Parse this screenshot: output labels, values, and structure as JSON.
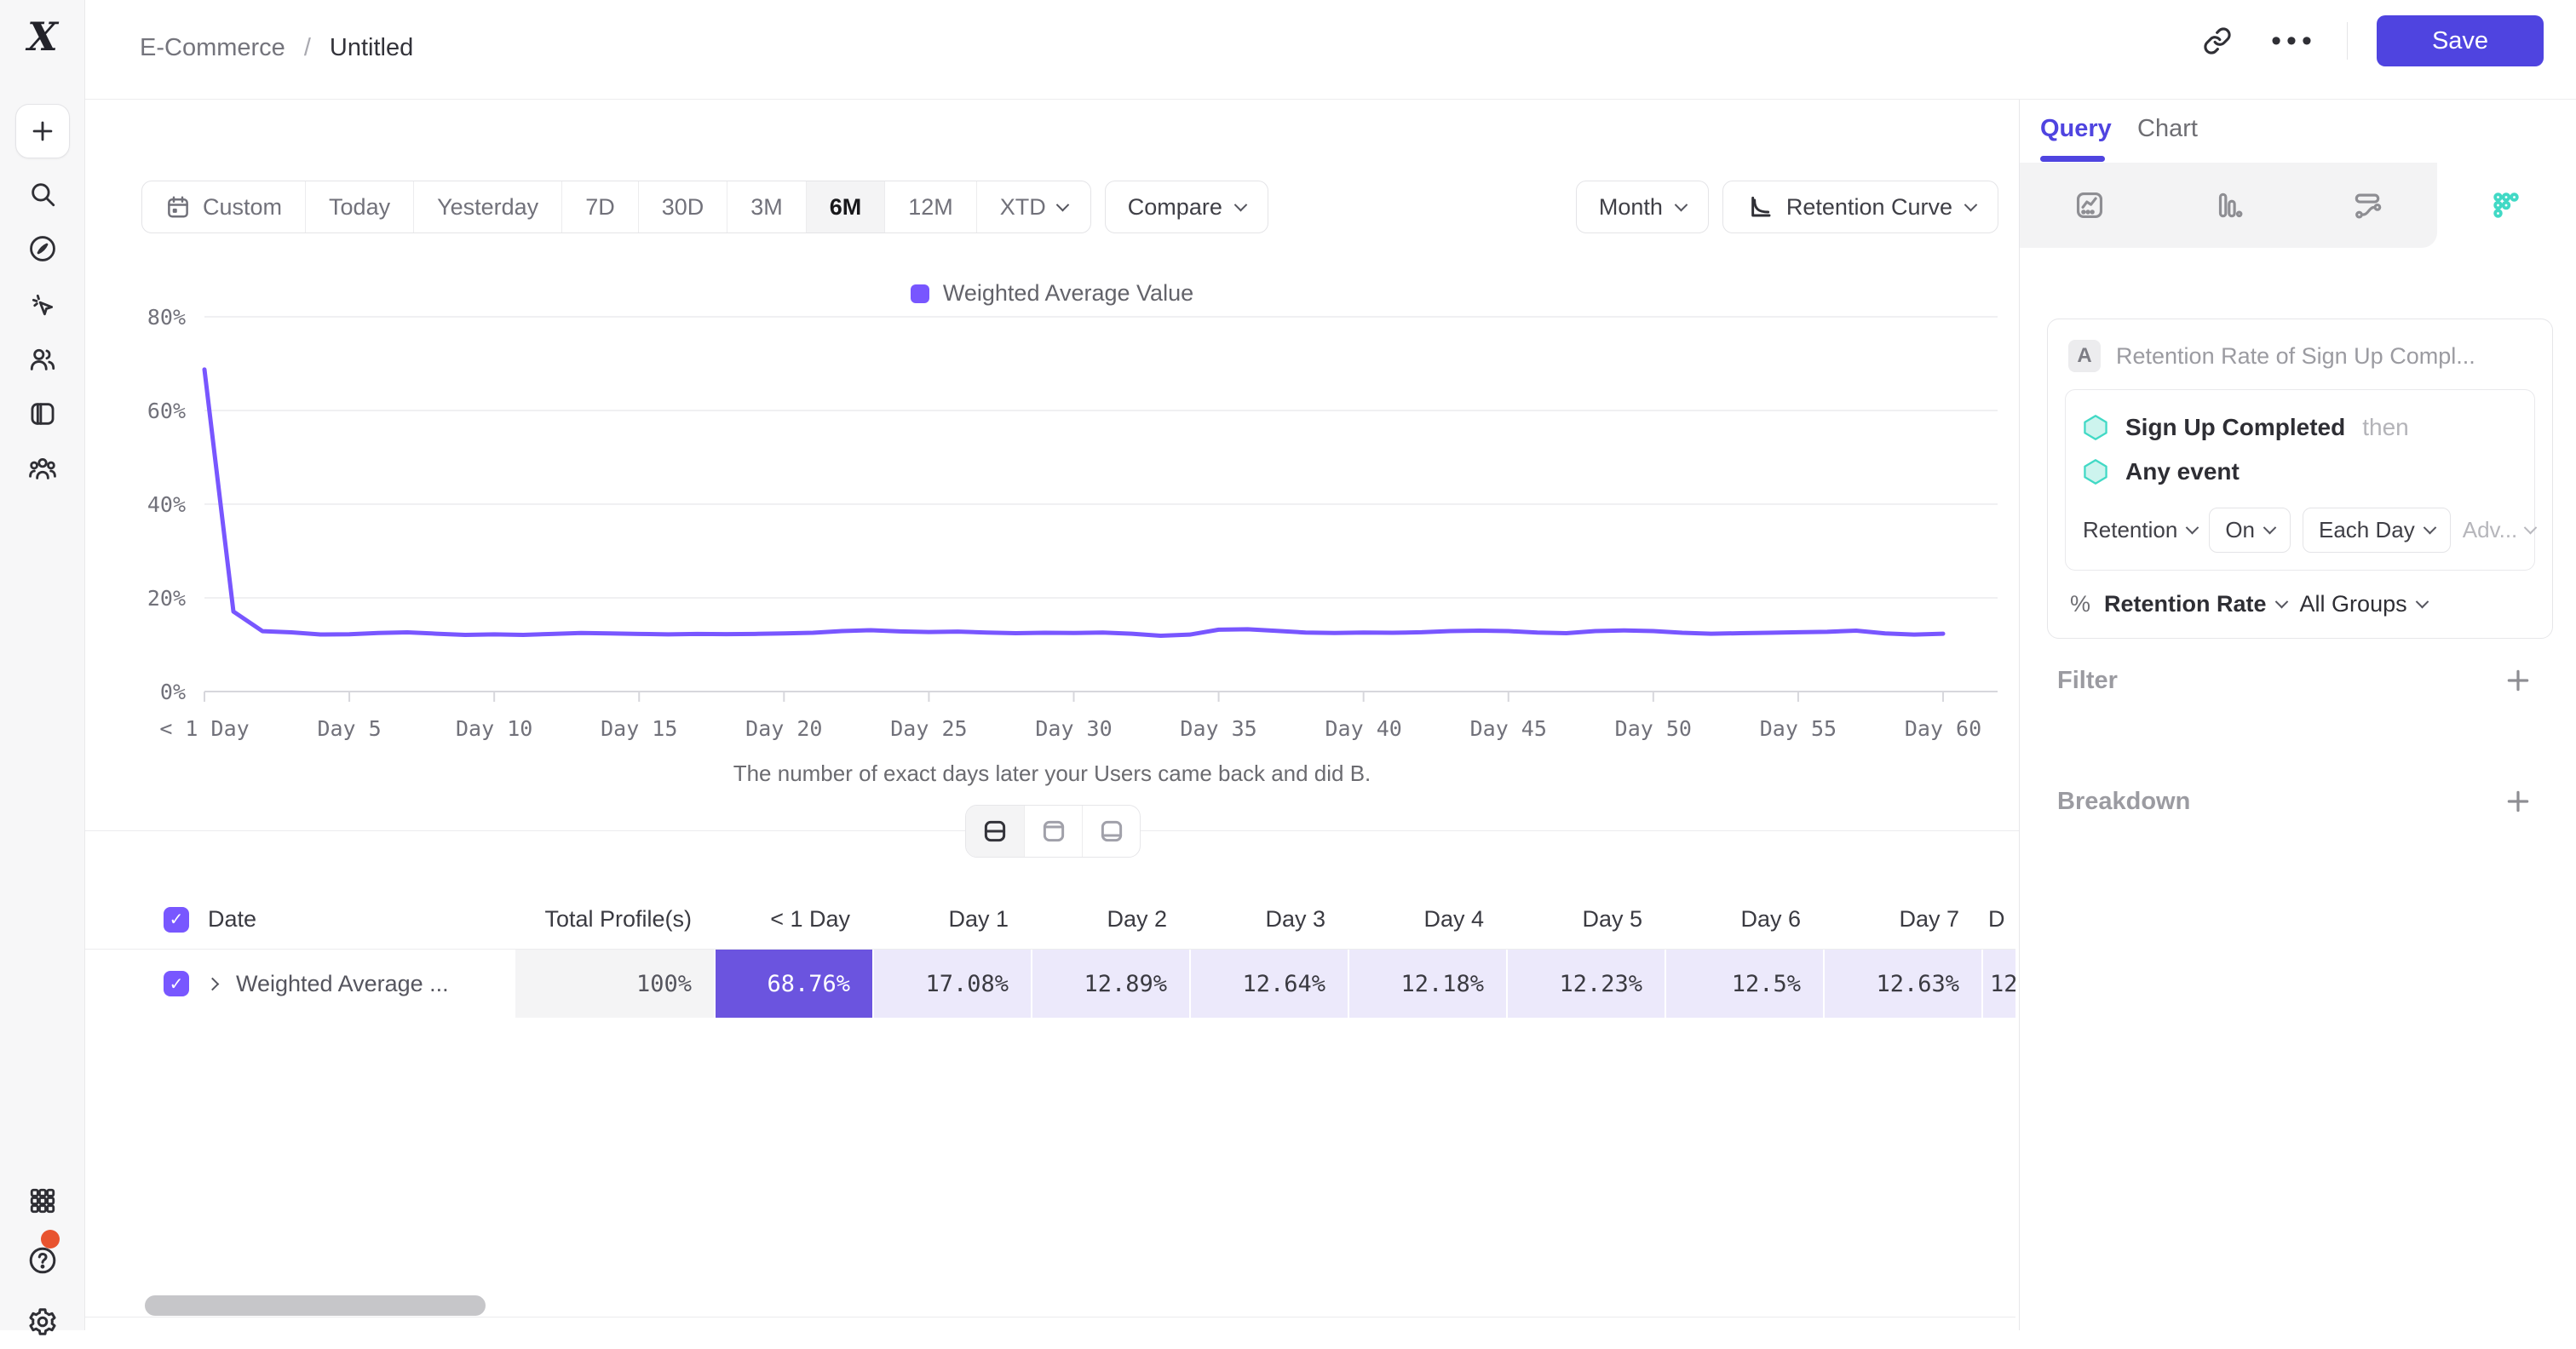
{
  "colors": {
    "accent": "#4f44e0",
    "line": "#7856FF",
    "cell_strong": "#6b54df",
    "cell_light": "#ece9fb",
    "teal": "#41d9c5",
    "notification_red": "#e8532f"
  },
  "header": {
    "breadcrumb_workspace": "E-Commerce",
    "breadcrumb_sep": "/",
    "breadcrumb_current": "Untitled",
    "save_label": "Save",
    "more_dots": "•••"
  },
  "toolbar": {
    "date_ranges": [
      "Custom",
      "Today",
      "Yesterday",
      "7D",
      "30D",
      "3M",
      "6M",
      "12M",
      "XTD"
    ],
    "selected_range": "6M",
    "compare_label": "Compare",
    "granularity_label": "Month",
    "chart_type_label": "Retention Curve"
  },
  "chart_data": {
    "type": "line",
    "title": "Retention Curve",
    "legend": [
      "Weighted Average Value"
    ],
    "legend_position": "top",
    "grid": true,
    "line_color": "#7856FF",
    "ylim": [
      0,
      80
    ],
    "y_tick_values": [
      0,
      20,
      40,
      60,
      80
    ],
    "y_tick_labels": [
      "0%",
      "20%",
      "40%",
      "60%",
      "80%"
    ],
    "x_tick_labels": [
      "< 1 Day",
      "Day 5",
      "Day 10",
      "Day 15",
      "Day 20",
      "Day 25",
      "Day 30",
      "Day 35",
      "Day 40",
      "Day 45",
      "Day 50",
      "Day 55",
      "Day 60"
    ],
    "x_tick_positions": [
      0,
      5,
      10,
      15,
      20,
      25,
      30,
      35,
      40,
      45,
      50,
      55,
      60
    ],
    "x_range": [
      0,
      60
    ],
    "values": [
      68.76,
      17.08,
      12.89,
      12.64,
      12.18,
      12.23,
      12.5,
      12.63,
      12.35,
      12.1,
      12.2,
      12.1,
      12.3,
      12.5,
      12.4,
      12.3,
      12.2,
      12.3,
      12.25,
      12.3,
      12.4,
      12.55,
      12.9,
      13.1,
      12.85,
      12.7,
      12.8,
      12.6,
      12.45,
      12.55,
      12.5,
      12.6,
      12.35,
      11.9,
      12.15,
      13.2,
      13.3,
      12.95,
      12.6,
      12.5,
      12.6,
      12.55,
      12.65,
      12.9,
      13.0,
      12.9,
      12.6,
      12.45,
      12.9,
      13.05,
      12.9,
      12.55,
      12.35,
      12.45,
      12.55,
      12.65,
      12.75,
      13.0,
      12.4,
      12.15,
      12.35
    ],
    "xlabel": "The number of exact days later your Users came back and did B.",
    "ylabel": ""
  },
  "caption": "The number of exact days later your Users came back and did B.",
  "table": {
    "headers": [
      "Date",
      "Total Profile(s)",
      "< 1 Day",
      "Day 1",
      "Day 2",
      "Day 3",
      "Day 4",
      "Day 5",
      "Day 6",
      "Day 7",
      "D"
    ],
    "row": {
      "label": "Weighted Average ...",
      "total": "100%",
      "cells": [
        "68.76%",
        "17.08%",
        "12.89%",
        "12.64%",
        "12.18%",
        "12.23%",
        "12.5%",
        "12.63%",
        "12."
      ]
    }
  },
  "panel": {
    "tab_query": "Query",
    "tab_chart": "Chart",
    "query": {
      "series_badge": "A",
      "series_title": "Retention Rate of Sign Up Compl...",
      "first_event": "Sign Up Completed",
      "then_label": "then",
      "second_event": "Any event",
      "retention_label": "Retention",
      "on_label": "On",
      "each_label": "Each Day",
      "adv_label": "Adv...",
      "measure_prefix": "%",
      "measure_label": "Retention Rate",
      "groups_label": "All Groups"
    },
    "filter_label": "Filter",
    "breakdown_label": "Breakdown"
  }
}
